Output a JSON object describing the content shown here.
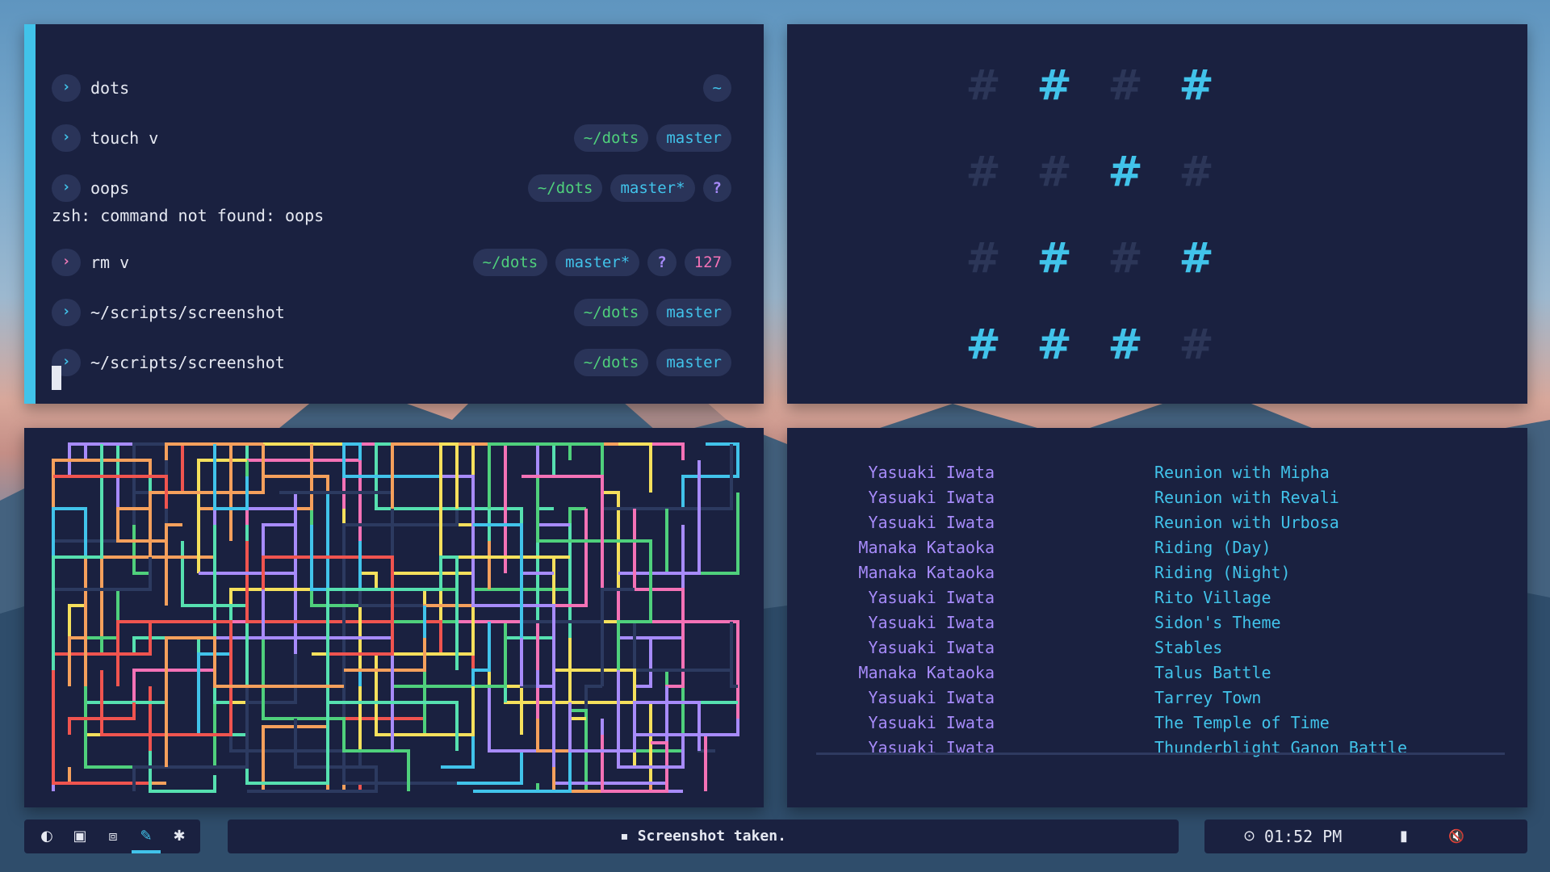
{
  "terminal": {
    "entries": [
      {
        "cmd": "dots",
        "tags": [
          {
            "text": "~",
            "kind": "home"
          }
        ]
      },
      {
        "cmd": "touch v",
        "tags": [
          {
            "text": "~/dots",
            "kind": "dir"
          },
          {
            "text": "master",
            "kind": "git"
          }
        ]
      },
      {
        "cmd": "oops",
        "tags": [
          {
            "text": "~/dots",
            "kind": "dir"
          },
          {
            "text": "master*",
            "kind": "git"
          },
          {
            "text": "?",
            "kind": "q"
          }
        ],
        "output": "zsh: command not found: oops"
      },
      {
        "cmd": "rm v",
        "error": true,
        "tags": [
          {
            "text": "~/dots",
            "kind": "dir"
          },
          {
            "text": "master*",
            "kind": "git"
          },
          {
            "text": "?",
            "kind": "q"
          },
          {
            "text": "127",
            "kind": "code"
          }
        ]
      },
      {
        "cmd": "~/scripts/screenshot",
        "tags": [
          {
            "text": "~/dots",
            "kind": "dir"
          },
          {
            "text": "master",
            "kind": "git"
          }
        ]
      },
      {
        "cmd": "~/scripts/screenshot",
        "tags": [
          {
            "text": "~/dots",
            "kind": "dir"
          },
          {
            "text": "master",
            "kind": "git"
          }
        ]
      }
    ],
    "prompt_glyph": "›"
  },
  "binary_clock": {
    "glyph": "#",
    "columns": [
      [
        false,
        false,
        false,
        true
      ],
      [
        true,
        false,
        true,
        true
      ],
      [
        false,
        true,
        false,
        true
      ],
      [
        true,
        false,
        true,
        false
      ]
    ]
  },
  "music": {
    "tracks": [
      {
        "artist": "Yasuaki Iwata",
        "title": "Reunion with Mipha"
      },
      {
        "artist": "Yasuaki Iwata",
        "title": "Reunion with Revali"
      },
      {
        "artist": "Yasuaki Iwata",
        "title": "Reunion with Urbosa"
      },
      {
        "artist": "Manaka Kataoka",
        "title": "Riding (Day)"
      },
      {
        "artist": "Manaka Kataoka",
        "title": "Riding (Night)"
      },
      {
        "artist": "Yasuaki Iwata",
        "title": "Rito Village"
      },
      {
        "artist": "Yasuaki Iwata",
        "title": "Sidon's Theme"
      },
      {
        "artist": "Yasuaki Iwata",
        "title": "Stables"
      },
      {
        "artist": "Manaka Kataoka",
        "title": "Talus Battle"
      },
      {
        "artist": "Yasuaki Iwata",
        "title": "Tarrey Town"
      },
      {
        "artist": "Yasuaki Iwata",
        "title": "The Temple of Time"
      },
      {
        "artist": "Yasuaki Iwata",
        "title": "Thunderblight Ganon Battle"
      }
    ]
  },
  "statusbar": {
    "workspaces": [
      {
        "icon": "moon-icon",
        "glyph": "◐",
        "active": false
      },
      {
        "icon": "terminal-icon",
        "glyph": "▣",
        "active": false
      },
      {
        "icon": "code-icon",
        "glyph": "⧈",
        "active": false
      },
      {
        "icon": "brush-icon",
        "glyph": "✎",
        "active": true
      },
      {
        "icon": "asterisk-icon",
        "glyph": "✱",
        "active": false
      }
    ],
    "notification": "Screenshot taken.",
    "notification_glyph": "▪",
    "clock_glyph": "⊙",
    "time": "01:52 PM",
    "battery_glyph": "▮",
    "volume_glyph": "🔇"
  },
  "colors": {
    "accent": "#41c3ea",
    "purple": "#a78bfa",
    "pink": "#f472b6",
    "green": "#4fd07c",
    "panel": "#1a2140"
  }
}
